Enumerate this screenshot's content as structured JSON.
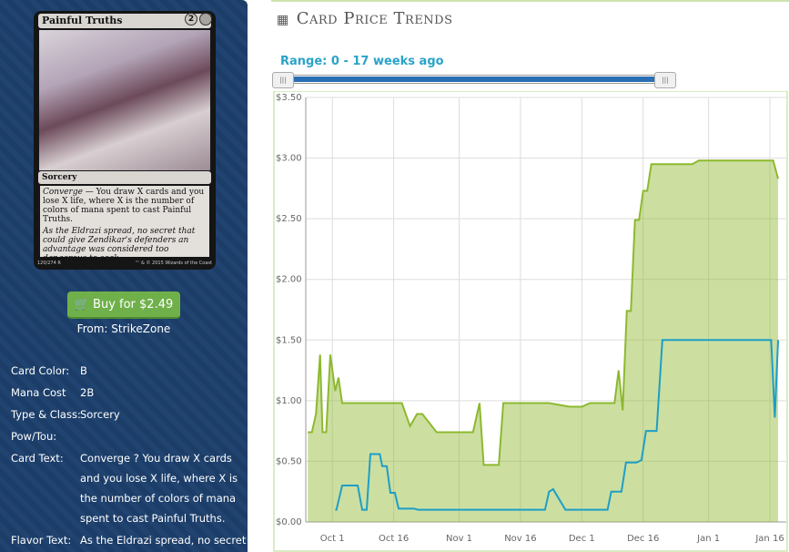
{
  "card": {
    "name": "Painful Truths",
    "mana_generic": "2",
    "type_line": "Sorcery",
    "rules_keyword": "Converge",
    "rules_text": " — You draw X cards and you lose X life, where X is the number of colors of mana spent to cast Painful Truths.",
    "flavor": "As the Eldrazi spread, no secret that could give Zendikar's defenders an advantage was considered too dangerous to seek.",
    "collector": "120/274 R",
    "copyright": "™ & © 2015 Wizards of the Coast"
  },
  "buy": {
    "button": "Buy for $2.49",
    "source": "From: StrikeZone"
  },
  "details": [
    {
      "label": "Card Color:",
      "lines": [
        "B"
      ]
    },
    {
      "label": "Mana Cost",
      "lines": [
        "2B"
      ]
    },
    {
      "label": "Type & Class:",
      "lines": [
        "Sorcery"
      ]
    },
    {
      "label": "Pow/Tou:"
    },
    {
      "label": "Card Text:",
      "lines": [
        "Converge ? You draw X cards",
        "and you lose X life, where X is",
        "the number of colors of mana",
        "spent to cast Painful Truths."
      ]
    },
    {
      "label": "Flavor Text:",
      "lines": [
        "As the Eldrazi spread, no secret"
      ]
    }
  ],
  "price_trends": {
    "heading": "Card Price Trends",
    "range": "Range: 0 - 17 weeks ago"
  },
  "chart_data": {
    "type": "area",
    "xlim": [
      -6.5,
      111
    ],
    "xticks": [
      {
        "value": 0,
        "label": "Oct 1"
      },
      {
        "value": 15,
        "label": "Oct 16"
      },
      {
        "value": 31,
        "label": "Nov 1"
      },
      {
        "value": 46,
        "label": "Nov 16"
      },
      {
        "value": 61,
        "label": "Dec 1"
      },
      {
        "value": 76,
        "label": "Dec 16"
      },
      {
        "value": 92,
        "label": "Jan 1"
      },
      {
        "value": 107,
        "label": "Jan 16"
      }
    ],
    "ylim": [
      0,
      3.5
    ],
    "yticks": [
      {
        "value": 0,
        "label": "$0.00"
      },
      {
        "value": 0.5,
        "label": "$0.50"
      },
      {
        "value": 1,
        "label": "$1.00"
      },
      {
        "value": 1.5,
        "label": "$1.50"
      },
      {
        "value": 2,
        "label": "$2.00"
      },
      {
        "value": 2.5,
        "label": "$2.50"
      },
      {
        "value": 3,
        "label": "$3.00"
      },
      {
        "value": 3.5,
        "label": "$3.50"
      }
    ],
    "grid": true,
    "series": [
      {
        "color": "#8db92e",
        "fill": true,
        "x": [
          -6,
          -5,
          -4,
          -3,
          -2.4,
          -1.5,
          -0.5,
          0.7,
          1.5,
          2.4,
          17,
          19,
          20.7,
          22,
          25.5,
          34.4,
          36,
          37,
          40.7,
          41.8,
          53,
          58,
          61,
          63,
          69,
          70,
          71,
          72,
          73,
          74,
          75,
          76,
          77,
          78,
          88,
          89.6,
          107.8,
          109
        ],
        "values": [
          0.74,
          0.74,
          0.89,
          1.38,
          0.74,
          0.74,
          1.38,
          1.08,
          1.19,
          0.98,
          0.98,
          0.79,
          0.89,
          0.89,
          0.74,
          0.74,
          0.98,
          0.47,
          0.47,
          0.98,
          0.98,
          0.95,
          0.95,
          0.98,
          0.98,
          1.25,
          0.92,
          1.74,
          1.74,
          2.49,
          2.49,
          2.73,
          2.73,
          2.95,
          2.95,
          2.98,
          2.98,
          2.83
        ]
      },
      {
        "color": "#1e9ec6",
        "fill": false,
        "x": [
          0.7,
          1,
          2.4,
          6.2,
          7.3,
          8.4,
          9.3,
          11.6,
          12.2,
          13.3,
          14.2,
          15.3,
          16.2,
          20,
          21,
          52,
          53,
          54,
          57,
          67.3,
          68.2,
          70.7,
          71.8,
          74.4,
          75.6,
          76.7,
          79.3,
          80.7,
          107.3,
          108.2,
          109
        ],
        "values": [
          0.1,
          0.1,
          0.3,
          0.3,
          0.1,
          0.1,
          0.56,
          0.56,
          0.46,
          0.46,
          0.24,
          0.24,
          0.11,
          0.11,
          0.1,
          0.1,
          0.25,
          0.27,
          0.1,
          0.1,
          0.25,
          0.25,
          0.49,
          0.49,
          0.51,
          0.75,
          0.75,
          1.5,
          1.5,
          0.86,
          1.5
        ]
      }
    ]
  }
}
